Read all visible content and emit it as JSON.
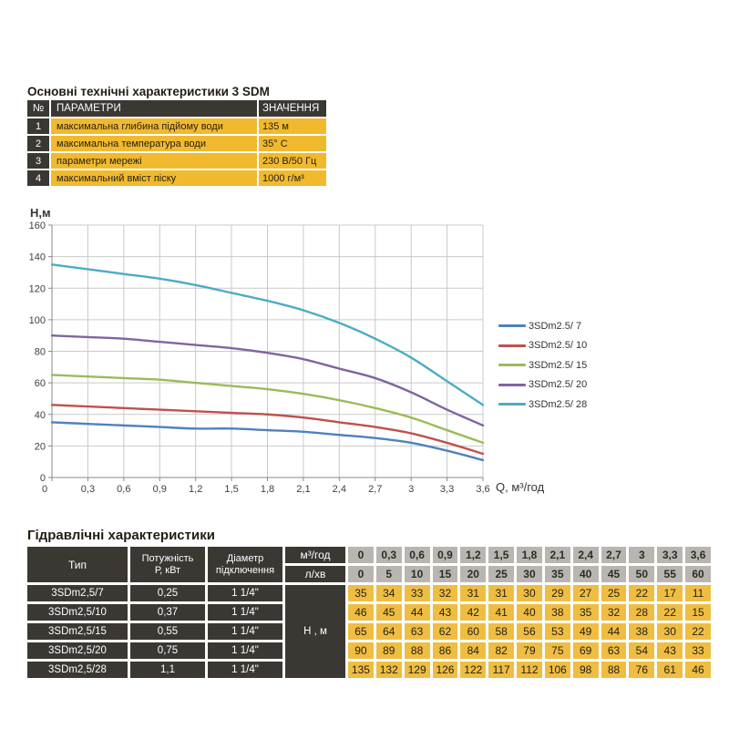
{
  "colors": {
    "dark_cell": "#3b3733",
    "yellow_top": "#f1ba2e",
    "yellow_bottom": "#efbd42",
    "gray_cell": "#b9b6b1",
    "grid_line": "#c9c9c9",
    "axis_line": "#898989"
  },
  "top_section": {
    "title": "Основні технічні характеристики 3 SDM",
    "table": {
      "headers": [
        "№",
        "ПАРАМЕТРИ",
        "ЗНАЧЕННЯ"
      ],
      "rows": [
        {
          "num": "1",
          "param": "максимальна глибина підйому води",
          "value": "135 м"
        },
        {
          "num": "2",
          "param": "максимальна температура води",
          "value": "35° С"
        },
        {
          "num": "3",
          "param": "параметри мережі",
          "value": "230 В/50 Гц"
        },
        {
          "num": "4",
          "param": "максимальний вміст піску",
          "value": "1000 г/м³"
        }
      ]
    }
  },
  "chart_data": {
    "type": "line",
    "title": "",
    "xlabel": "Q, м³/год",
    "ylabel": "Н,м",
    "x": [
      0,
      0.3,
      0.6,
      0.9,
      1.2,
      1.5,
      1.8,
      2.1,
      2.4,
      2.7,
      3,
      3.3,
      3.6
    ],
    "x_tick_labels": [
      "0",
      "0,3",
      "0,6",
      "0,9",
      "1,2",
      "1,5",
      "1,8",
      "2,1",
      "2,4",
      "2,7",
      "3",
      "3,3",
      "3,6"
    ],
    "y_ticks": [
      0,
      20,
      40,
      60,
      80,
      100,
      120,
      140,
      160
    ],
    "ylim": [
      0,
      160
    ],
    "grid": true,
    "legend_position": "right",
    "series": [
      {
        "name": "3SDm2.5/ 7",
        "color": "#4f81bd",
        "values": [
          35,
          34,
          33,
          32,
          31,
          31,
          30,
          29,
          27,
          25,
          22,
          17,
          11
        ]
      },
      {
        "name": "3SDm2.5/ 10",
        "color": "#c0504d",
        "values": [
          46,
          45,
          44,
          43,
          42,
          41,
          40,
          38,
          35,
          32,
          28,
          22,
          15
        ]
      },
      {
        "name": "3SDm2.5/ 15",
        "color": "#9bbb59",
        "values": [
          65,
          64,
          63,
          62,
          60,
          58,
          56,
          53,
          49,
          44,
          38,
          30,
          22
        ]
      },
      {
        "name": "3SDm2.5/ 20",
        "color": "#8064a2",
        "values": [
          90,
          89,
          88,
          86,
          84,
          82,
          79,
          75,
          69,
          63,
          54,
          43,
          33
        ]
      },
      {
        "name": "3SDm2.5/ 28",
        "color": "#4bacc6",
        "values": [
          135,
          132,
          129,
          126,
          122,
          117,
          112,
          106,
          98,
          88,
          76,
          61,
          46
        ]
      }
    ]
  },
  "bottom_section": {
    "title": "Гідравлічні характеристики",
    "table": {
      "type_header": "Тип",
      "power_header": "Потужність\nР, кВт",
      "diameter_header": "Діаметр\nпідключення",
      "flow_label": "м³/год",
      "flow_values": [
        "0",
        "0,3",
        "0,6",
        "0,9",
        "1,2",
        "1,5",
        "1,8",
        "2,1",
        "2,4",
        "2,7",
        "3",
        "3,3",
        "3,6"
      ],
      "lmin_label": "л/хв",
      "lmin_values": [
        "0",
        "5",
        "10",
        "15",
        "20",
        "25",
        "30",
        "35",
        "40",
        "45",
        "50",
        "55",
        "60"
      ],
      "head_label": "Н , м",
      "rows": [
        {
          "type": "3SDm2,5/7",
          "power": "0,25",
          "diameter": "1 1/4\"",
          "values": [
            35,
            34,
            33,
            32,
            31,
            31,
            30,
            29,
            27,
            25,
            22,
            17,
            11
          ]
        },
        {
          "type": "3SDm2,5/10",
          "power": "0,37",
          "diameter": "1 1/4\"",
          "values": [
            46,
            45,
            44,
            43,
            42,
            41,
            40,
            38,
            35,
            32,
            28,
            22,
            15
          ]
        },
        {
          "type": "3SDm2,5/15",
          "power": "0,55",
          "diameter": "1 1/4\"",
          "values": [
            65,
            64,
            63,
            62,
            60,
            58,
            56,
            53,
            49,
            44,
            38,
            30,
            22
          ]
        },
        {
          "type": "3SDm2,5/20",
          "power": "0,75",
          "diameter": "1 1/4\"",
          "values": [
            90,
            89,
            88,
            86,
            84,
            82,
            79,
            75,
            69,
            63,
            54,
            43,
            33
          ]
        },
        {
          "type": "3SDm2,5/28",
          "power": "1,1",
          "diameter": "1 1/4\"",
          "values": [
            135,
            132,
            129,
            126,
            122,
            117,
            112,
            106,
            98,
            88,
            76,
            61,
            46
          ]
        }
      ]
    }
  }
}
